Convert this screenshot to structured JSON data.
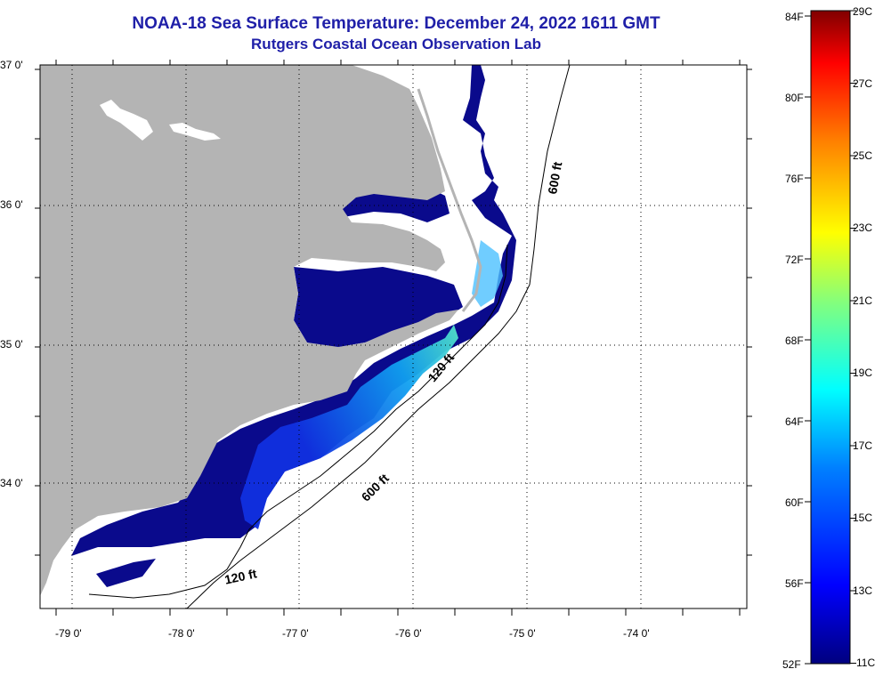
{
  "title": "NOAA-18 Sea Surface Temperature:  December 24, 2022 1611 GMT",
  "subtitle": "Rutgers Coastal Ocean Observation Lab",
  "lon_labels": [
    "-79 0'",
    "-78 0'",
    "-77 0'",
    "-76 0'",
    "-75 0'",
    "-74 0'"
  ],
  "lat_labels": [
    "37 0'",
    "36 0'",
    "35 0'",
    "34 0'"
  ],
  "contours": [
    "600 ft",
    "120 ft",
    "600 ft",
    "120 ft"
  ],
  "colorbar": {
    "fahrenheit": [
      "84F",
      "80F",
      "76F",
      "72F",
      "68F",
      "64F",
      "60F",
      "56F",
      "52F"
    ],
    "celsius": [
      "29C",
      "27C",
      "25C",
      "23C",
      "21C",
      "19C",
      "17C",
      "15C",
      "13C",
      "11C"
    ]
  },
  "colors": {
    "land": "#b4b4b4",
    "ocean_cold": "#0a0a8c",
    "title": "#1f1fa8"
  }
}
